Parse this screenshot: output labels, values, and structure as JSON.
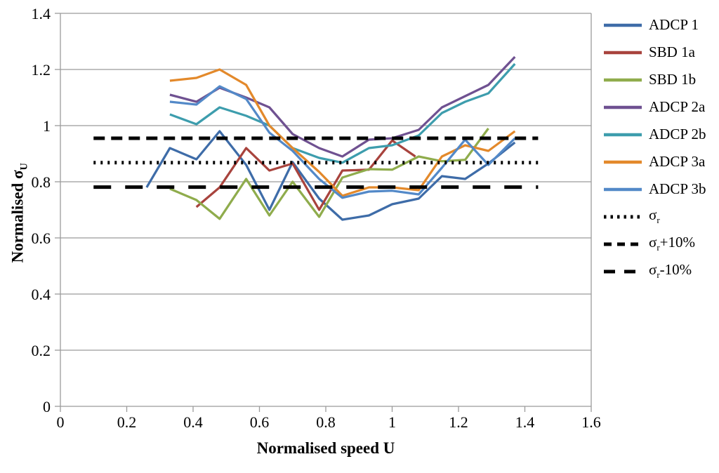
{
  "chart_data": {
    "type": "line",
    "title": "",
    "xlabel": "Normalised speed U",
    "ylabel_base": "Normalised σ",
    "ylabel_sub": "U",
    "xlim": [
      0,
      1.6
    ],
    "ylim": [
      0,
      1.4
    ],
    "xticks": [
      0,
      0.2,
      0.4,
      0.6,
      0.8,
      1,
      1.2,
      1.4,
      1.6
    ],
    "xtick_labels": [
      "0",
      "0.2",
      "0.4",
      "0.6",
      "0.8",
      "1",
      "1.2",
      "1.4",
      "1.6"
    ],
    "yticks": [
      0,
      0.2,
      0.4,
      0.6,
      0.8,
      1,
      1.2,
      1.4
    ],
    "ytick_labels": [
      "0",
      "0.2",
      "0.4",
      "0.6",
      "0.8",
      "1",
      "1.2",
      "1.4"
    ],
    "grid": "horizontal",
    "legend_position": "right",
    "axis_color": "#9B9B9B",
    "series": [
      {
        "name": "ADCP 1",
        "label": "ADCP 1",
        "color": "#3E6CA8",
        "style": "solid",
        "x": [
          0.26,
          0.33,
          0.41,
          0.48,
          0.56,
          0.63,
          0.7,
          0.78,
          0.85,
          0.93,
          1.0,
          1.08,
          1.15,
          1.22,
          1.29,
          1.37
        ],
        "y": [
          0.78,
          0.92,
          0.88,
          0.98,
          0.86,
          0.7,
          0.87,
          0.74,
          0.665,
          0.68,
          0.72,
          0.74,
          0.82,
          0.81,
          0.865,
          0.94
        ]
      },
      {
        "name": "SBD 1a",
        "label": "SBD 1a",
        "color": "#A8433D",
        "style": "solid",
        "x": [
          0.41,
          0.48,
          0.56,
          0.63,
          0.7,
          0.78,
          0.85,
          0.93,
          1.0,
          1.07
        ],
        "y": [
          0.71,
          0.78,
          0.92,
          0.84,
          0.865,
          0.7,
          0.84,
          0.843,
          0.947,
          0.89
        ]
      },
      {
        "name": "SBD 1b",
        "label": "SBD 1b",
        "color": "#8FAC4C",
        "style": "solid",
        "x": [
          0.33,
          0.41,
          0.48,
          0.56,
          0.63,
          0.7,
          0.78,
          0.85,
          0.93,
          1.0,
          1.08,
          1.15,
          1.22,
          1.29
        ],
        "y": [
          0.775,
          0.735,
          0.668,
          0.81,
          0.68,
          0.8,
          0.675,
          0.815,
          0.845,
          0.843,
          0.89,
          0.873,
          0.878,
          0.99
        ]
      },
      {
        "name": "ADCP 2a",
        "label": "ADCP 2a",
        "color": "#6F5191",
        "style": "solid",
        "x": [
          0.33,
          0.41,
          0.48,
          0.56,
          0.63,
          0.7,
          0.78,
          0.85,
          0.93,
          1.0,
          1.08,
          1.15,
          1.22,
          1.29,
          1.37
        ],
        "y": [
          1.11,
          1.085,
          1.135,
          1.1,
          1.065,
          0.97,
          0.92,
          0.89,
          0.95,
          0.955,
          0.985,
          1.065,
          1.105,
          1.145,
          1.245
        ]
      },
      {
        "name": "ADCP 2b",
        "label": "ADCP 2b",
        "color": "#3D9DAD",
        "style": "solid",
        "x": [
          0.33,
          0.41,
          0.48,
          0.56,
          0.63,
          0.7,
          0.78,
          0.85,
          0.93,
          1.0,
          1.08,
          1.15,
          1.22,
          1.29,
          1.37
        ],
        "y": [
          1.04,
          1.005,
          1.065,
          1.035,
          1.0,
          0.92,
          0.885,
          0.868,
          0.92,
          0.93,
          0.965,
          1.045,
          1.085,
          1.115,
          1.22
        ]
      },
      {
        "name": "ADCP 3a",
        "label": "ADCP 3a",
        "color": "#E3892B",
        "style": "solid",
        "x": [
          0.33,
          0.41,
          0.48,
          0.56,
          0.63,
          0.7,
          0.78,
          0.85,
          0.93,
          1.0,
          1.08,
          1.15,
          1.22,
          1.29,
          1.37
        ],
        "y": [
          1.16,
          1.17,
          1.2,
          1.145,
          1.0,
          0.92,
          0.835,
          0.75,
          0.78,
          0.78,
          0.77,
          0.89,
          0.93,
          0.91,
          0.98
        ]
      },
      {
        "name": "ADCP 3b",
        "label": "ADCP 3b",
        "color": "#5389C8",
        "style": "solid",
        "x": [
          0.33,
          0.41,
          0.48,
          0.56,
          0.63,
          0.7,
          0.78,
          0.85,
          0.93,
          1.0,
          1.08,
          1.15,
          1.22,
          1.29,
          1.37
        ],
        "y": [
          1.085,
          1.075,
          1.14,
          1.095,
          0.975,
          0.91,
          0.81,
          0.743,
          0.765,
          0.768,
          0.755,
          0.85,
          0.95,
          0.86,
          0.955
        ]
      },
      {
        "name": "sigma-r",
        "label_base": "σ",
        "label_sub": "r",
        "label_suffix": "",
        "color": "#000000",
        "style": "dotted",
        "x": [
          0.1,
          1.44
        ],
        "y": [
          0.868,
          0.868
        ]
      },
      {
        "name": "sigma-r-plus-10pct",
        "label_base": "σ",
        "label_sub": "r",
        "label_suffix": "+10%",
        "color": "#000000",
        "style": "dash",
        "x": [
          0.1,
          1.44
        ],
        "y": [
          0.955,
          0.955
        ]
      },
      {
        "name": "sigma-r-minus-10pct",
        "label_base": "σ",
        "label_sub": "r",
        "label_suffix": "-10%",
        "color": "#000000",
        "style": "longdash",
        "x": [
          0.1,
          1.44
        ],
        "y": [
          0.781,
          0.781
        ]
      }
    ]
  }
}
